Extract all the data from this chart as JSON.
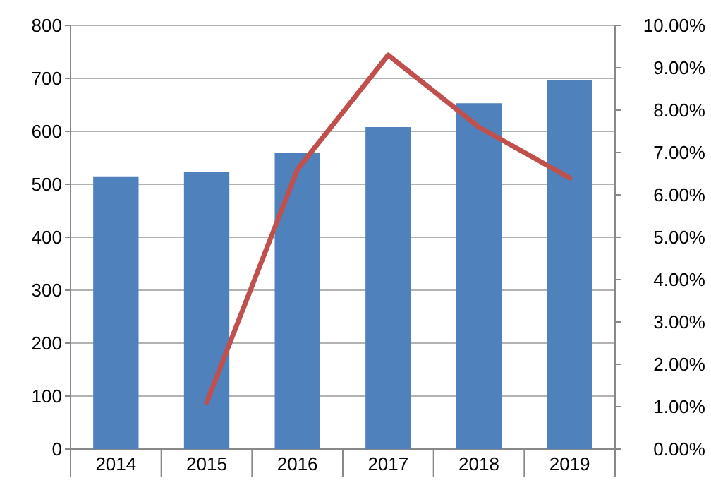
{
  "chart_data": {
    "type": "bar",
    "categories": [
      "2014",
      "2015",
      "2016",
      "2017",
      "2018",
      "2019"
    ],
    "series": [
      {
        "color": "#4f81bd",
        "values": [
          515,
          523,
          560,
          608,
          653,
          696
        ]
      },
      {
        "type": "line",
        "axis": "y2",
        "color": "#c0504d",
        "values": [
          null,
          1.1,
          6.6,
          9.3,
          7.6,
          6.4
        ]
      }
    ],
    "ylim": [
      0,
      800
    ],
    "yticks": [
      0,
      100,
      200,
      300,
      400,
      500,
      600,
      700,
      800
    ],
    "y2lim": [
      0,
      10
    ],
    "y2ticks": [
      {
        "value": 0,
        "label": "0.00%"
      },
      {
        "value": 1,
        "label": "1.00%"
      },
      {
        "value": 2,
        "label": "2.00%"
      },
      {
        "value": 3,
        "label": "3.00%"
      },
      {
        "value": 4,
        "label": "4.00%"
      },
      {
        "value": 5,
        "label": "5.00%"
      },
      {
        "value": 6,
        "label": "6.00%"
      },
      {
        "value": 7,
        "label": "7.00%"
      },
      {
        "value": 8,
        "label": "8.00%"
      },
      {
        "value": 9,
        "label": "9.00%"
      },
      {
        "value": 10,
        "label": "10.00%"
      }
    ],
    "grid": "y",
    "marker": "none",
    "line_style": "solid"
  }
}
